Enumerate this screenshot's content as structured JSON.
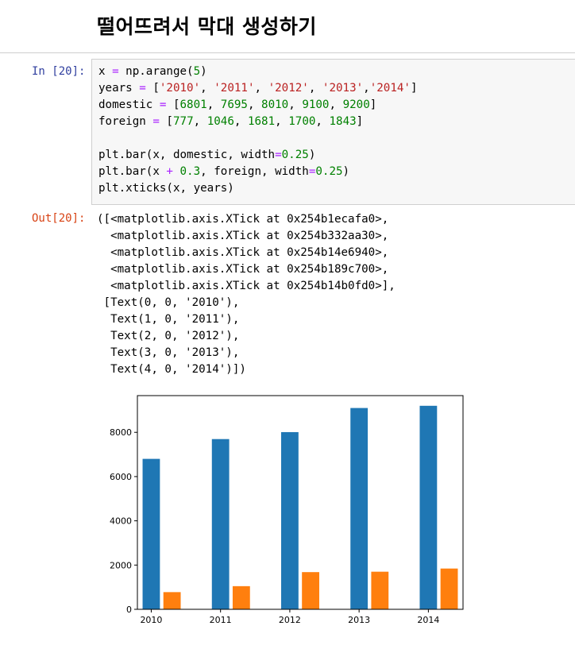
{
  "heading": "떨어뜨려서 막대 생성하기",
  "cell": {
    "in_prompt": "In [20]:",
    "out_prompt": "Out[20]:",
    "code_lines": [
      [
        {
          "t": "x "
        },
        {
          "t": "=",
          "c": "op"
        },
        {
          "t": " np.arange("
        },
        {
          "t": "5",
          "c": "num"
        },
        {
          "t": ")"
        }
      ],
      [
        {
          "t": "years "
        },
        {
          "t": "=",
          "c": "op"
        },
        {
          "t": " ["
        },
        {
          "t": "'2010'",
          "c": "str"
        },
        {
          "t": ", "
        },
        {
          "t": "'2011'",
          "c": "str"
        },
        {
          "t": ", "
        },
        {
          "t": "'2012'",
          "c": "str"
        },
        {
          "t": ", "
        },
        {
          "t": "'2013'",
          "c": "str"
        },
        {
          "t": ","
        },
        {
          "t": "'2014'",
          "c": "str"
        },
        {
          "t": "]"
        }
      ],
      [
        {
          "t": "domestic "
        },
        {
          "t": "=",
          "c": "op"
        },
        {
          "t": " ["
        },
        {
          "t": "6801",
          "c": "num"
        },
        {
          "t": ", "
        },
        {
          "t": "7695",
          "c": "num"
        },
        {
          "t": ", "
        },
        {
          "t": "8010",
          "c": "num"
        },
        {
          "t": ", "
        },
        {
          "t": "9100",
          "c": "num"
        },
        {
          "t": ", "
        },
        {
          "t": "9200",
          "c": "num"
        },
        {
          "t": "]"
        }
      ],
      [
        {
          "t": "foreign "
        },
        {
          "t": "=",
          "c": "op"
        },
        {
          "t": " ["
        },
        {
          "t": "777",
          "c": "num"
        },
        {
          "t": ", "
        },
        {
          "t": "1046",
          "c": "num"
        },
        {
          "t": ", "
        },
        {
          "t": "1681",
          "c": "num"
        },
        {
          "t": ", "
        },
        {
          "t": "1700",
          "c": "num"
        },
        {
          "t": ", "
        },
        {
          "t": "1843",
          "c": "num"
        },
        {
          "t": "]"
        }
      ],
      [],
      [
        {
          "t": "plt.bar(x, domestic, width"
        },
        {
          "t": "=",
          "c": "op"
        },
        {
          "t": "0.25",
          "c": "num"
        },
        {
          "t": ")"
        }
      ],
      [
        {
          "t": "plt.bar(x "
        },
        {
          "t": "+",
          "c": "op"
        },
        {
          "t": " "
        },
        {
          "t": "0.3",
          "c": "num"
        },
        {
          "t": ", foreign, width"
        },
        {
          "t": "=",
          "c": "op"
        },
        {
          "t": "0.25",
          "c": "num"
        },
        {
          "t": ")"
        }
      ],
      [
        {
          "t": "plt.xticks(x, years)"
        }
      ]
    ],
    "output_lines": [
      "([<matplotlib.axis.XTick at 0x254b1ecafa0>,",
      "  <matplotlib.axis.XTick at 0x254b332aa30>,",
      "  <matplotlib.axis.XTick at 0x254b14e6940>,",
      "  <matplotlib.axis.XTick at 0x254b189c700>,",
      "  <matplotlib.axis.XTick at 0x254b14b0fd0>],",
      " [Text(0, 0, '2010'),",
      "  Text(1, 0, '2011'),",
      "  Text(2, 0, '2012'),",
      "  Text(3, 0, '2013'),",
      "  Text(4, 0, '2014')])"
    ]
  },
  "colors": {
    "domestic": "#1f77b4",
    "foreign": "#ff7f0e"
  },
  "chart_data": {
    "type": "bar",
    "categories": [
      "2010",
      "2011",
      "2012",
      "2013",
      "2014"
    ],
    "x": [
      0,
      1,
      2,
      3,
      4
    ],
    "series": [
      {
        "values": [
          6801,
          7695,
          8010,
          9100,
          9200
        ],
        "offset": 0,
        "width": 0.25,
        "color": "#1f77b4"
      },
      {
        "values": [
          777,
          1046,
          1681,
          1700,
          1843
        ],
        "offset": 0.3,
        "width": 0.25,
        "color": "#ff7f0e"
      }
    ],
    "yticks": [
      0,
      2000,
      4000,
      6000,
      8000
    ],
    "ylim": [
      0,
      9660
    ],
    "xlim": [
      -0.2,
      4.5
    ],
    "grid": false
  }
}
